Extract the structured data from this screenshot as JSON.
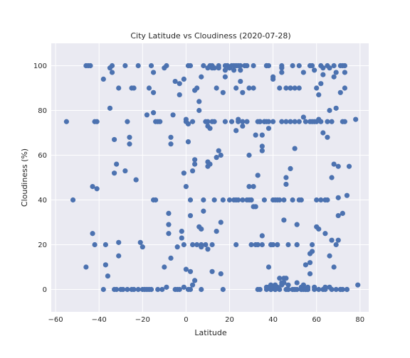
{
  "chart_data": {
    "type": "scatter",
    "title": "City Latitude vs Cloudiness (2020-07-28)",
    "xlabel": "Latitude",
    "ylabel": "Cloudiness (%)",
    "xlim": [
      -62,
      84
    ],
    "ylim": [
      -10,
      110
    ],
    "xticks": [
      "−60",
      "−40",
      "−20",
      "0",
      "20",
      "40",
      "60",
      "80"
    ],
    "yticks": [
      "0",
      "20",
      "40",
      "60",
      "80",
      "100"
    ],
    "grid": true,
    "point_color": "#4c72b0",
    "background_color": "#eaeaf2",
    "points": [
      [
        -55,
        75
      ],
      [
        -52,
        40
      ],
      [
        -46,
        10
      ],
      [
        -46,
        100
      ],
      [
        -45,
        100
      ],
      [
        -44,
        100
      ],
      [
        -43,
        25
      ],
      [
        -43,
        46
      ],
      [
        -42,
        75
      ],
      [
        -42,
        20
      ],
      [
        -41,
        45
      ],
      [
        -41,
        75
      ],
      [
        -38,
        0
      ],
      [
        -38,
        94
      ],
      [
        -37,
        20
      ],
      [
        -37,
        11
      ],
      [
        -36,
        6
      ],
      [
        -35,
        81
      ],
      [
        -35,
        99
      ],
      [
        -34,
        97
      ],
      [
        -34,
        100
      ],
      [
        -33,
        67
      ],
      [
        -33,
        0
      ],
      [
        -33,
        52
      ],
      [
        -32,
        56
      ],
      [
        -32,
        0
      ],
      [
        -31,
        15
      ],
      [
        -31,
        21
      ],
      [
        -31,
        90
      ],
      [
        -30,
        0
      ],
      [
        -29,
        0
      ],
      [
        -28,
        100
      ],
      [
        -28,
        53
      ],
      [
        -27,
        75
      ],
      [
        -27,
        0
      ],
      [
        -26,
        65
      ],
      [
        -26,
        68
      ],
      [
        -25,
        90
      ],
      [
        -25,
        0
      ],
      [
        -24,
        0
      ],
      [
        -24,
        90
      ],
      [
        -23,
        49
      ],
      [
        -22,
        0
      ],
      [
        -22,
        100
      ],
      [
        -21,
        21
      ],
      [
        -20,
        0
      ],
      [
        -20,
        19
      ],
      [
        -19,
        0
      ],
      [
        -18,
        0
      ],
      [
        -18,
        78
      ],
      [
        -17,
        90
      ],
      [
        -17,
        0
      ],
      [
        -16,
        0
      ],
      [
        -16,
        100
      ],
      [
        -15,
        88
      ],
      [
        -15,
        79
      ],
      [
        -15,
        97
      ],
      [
        -15,
        40
      ],
      [
        -14,
        40
      ],
      [
        -14,
        75
      ],
      [
        -13,
        75
      ],
      [
        -13,
        0
      ],
      [
        -12,
        75
      ],
      [
        -11,
        0
      ],
      [
        -10,
        10
      ],
      [
        -10,
        99
      ],
      [
        -9,
        100
      ],
      [
        -9,
        1
      ],
      [
        -8,
        29
      ],
      [
        -8,
        34
      ],
      [
        -8,
        25
      ],
      [
        -7,
        68
      ],
      [
        -7,
        65
      ],
      [
        -7,
        14
      ],
      [
        -6,
        78
      ],
      [
        -5,
        0
      ],
      [
        -5,
        93
      ],
      [
        -4,
        0
      ],
      [
        -4,
        19
      ],
      [
        -3,
        92
      ],
      [
        -3,
        87
      ],
      [
        -3,
        0
      ],
      [
        -2,
        23
      ],
      [
        -2,
        26
      ],
      [
        -1,
        20
      ],
      [
        -1,
        52
      ],
      [
        -1,
        1
      ],
      [
        -1,
        94
      ],
      [
        0,
        76
      ],
      [
        0,
        46
      ],
      [
        0,
        75
      ],
      [
        0,
        9
      ],
      [
        1,
        100
      ],
      [
        1,
        66
      ],
      [
        1,
        0
      ],
      [
        1,
        74
      ],
      [
        2,
        40
      ],
      [
        2,
        0
      ],
      [
        2,
        33
      ],
      [
        2,
        100
      ],
      [
        2,
        8
      ],
      [
        3,
        53
      ],
      [
        3,
        20
      ],
      [
        3,
        2
      ],
      [
        3,
        75
      ],
      [
        4,
        56
      ],
      [
        4,
        4
      ],
      [
        4,
        58
      ],
      [
        4,
        89
      ],
      [
        5,
        90
      ],
      [
        5,
        20
      ],
      [
        6,
        84
      ],
      [
        6,
        28
      ],
      [
        6,
        80
      ],
      [
        7,
        95
      ],
      [
        7,
        19
      ],
      [
        7,
        0
      ],
      [
        7,
        20
      ],
      [
        7,
        27
      ],
      [
        8,
        100
      ],
      [
        8,
        35
      ],
      [
        8,
        40
      ],
      [
        9,
        20
      ],
      [
        9,
        75
      ],
      [
        10,
        18
      ],
      [
        10,
        55
      ],
      [
        10,
        75
      ],
      [
        10,
        99
      ],
      [
        10,
        73
      ],
      [
        10,
        57
      ],
      [
        11,
        56
      ],
      [
        11,
        100
      ],
      [
        11,
        72
      ],
      [
        12,
        75
      ],
      [
        12,
        100
      ],
      [
        12,
        20
      ],
      [
        12,
        99
      ],
      [
        12,
        8
      ],
      [
        13,
        99
      ],
      [
        13,
        75
      ],
      [
        13,
        40
      ],
      [
        14,
        26
      ],
      [
        14,
        59
      ],
      [
        14,
        90
      ],
      [
        15,
        100
      ],
      [
        15,
        62
      ],
      [
        15,
        99
      ],
      [
        16,
        7
      ],
      [
        16,
        30
      ],
      [
        16,
        60
      ],
      [
        17,
        0
      ],
      [
        17,
        40
      ],
      [
        17,
        88
      ],
      [
        18,
        100
      ],
      [
        18,
        75
      ],
      [
        18,
        95
      ],
      [
        18,
        98
      ],
      [
        19,
        100
      ],
      [
        19,
        100
      ],
      [
        20,
        99
      ],
      [
        20,
        99
      ],
      [
        20,
        40
      ],
      [
        21,
        75
      ],
      [
        21,
        100
      ],
      [
        22,
        100
      ],
      [
        22,
        98
      ],
      [
        22,
        40
      ],
      [
        23,
        100
      ],
      [
        23,
        90
      ],
      [
        23,
        71
      ],
      [
        23,
        40
      ],
      [
        23,
        20
      ],
      [
        24,
        100
      ],
      [
        24,
        76
      ],
      [
        24,
        75
      ],
      [
        24,
        40
      ],
      [
        25,
        98
      ],
      [
        25,
        100
      ],
      [
        25,
        93
      ],
      [
        26,
        88
      ],
      [
        26,
        40
      ],
      [
        26,
        73
      ],
      [
        26,
        75
      ],
      [
        27,
        100
      ],
      [
        27,
        100
      ],
      [
        28,
        100
      ],
      [
        28,
        75
      ],
      [
        28,
        40
      ],
      [
        29,
        40
      ],
      [
        29,
        90
      ],
      [
        29,
        60
      ],
      [
        29,
        46
      ],
      [
        30,
        40
      ],
      [
        30,
        40
      ],
      [
        30,
        20
      ],
      [
        31,
        100
      ],
      [
        31,
        46
      ],
      [
        31,
        37
      ],
      [
        31,
        90
      ],
      [
        32,
        37
      ],
      [
        32,
        69
      ],
      [
        32,
        20
      ],
      [
        33,
        75
      ],
      [
        33,
        51
      ],
      [
        33,
        0
      ],
      [
        33,
        20
      ],
      [
        34,
        75
      ],
      [
        34,
        75
      ],
      [
        34,
        0
      ],
      [
        35,
        20
      ],
      [
        35,
        24
      ],
      [
        35,
        69
      ],
      [
        35,
        62
      ],
      [
        35,
        64
      ],
      [
        36,
        75
      ],
      [
        36,
        40
      ],
      [
        36,
        75
      ],
      [
        37,
        0
      ],
      [
        37,
        1
      ],
      [
        37,
        100
      ],
      [
        37,
        100
      ],
      [
        37,
        75
      ],
      [
        38,
        10
      ],
      [
        38,
        72
      ],
      [
        38,
        100
      ],
      [
        38,
        1
      ],
      [
        38,
        75
      ],
      [
        39,
        20
      ],
      [
        39,
        0
      ],
      [
        39,
        0
      ],
      [
        39,
        2
      ],
      [
        40,
        95
      ],
      [
        40,
        94
      ],
      [
        40,
        75
      ],
      [
        40,
        40
      ],
      [
        40,
        20
      ],
      [
        40,
        1
      ],
      [
        41,
        0
      ],
      [
        41,
        0
      ],
      [
        41,
        2
      ],
      [
        41,
        40
      ],
      [
        41,
        0
      ],
      [
        42,
        20
      ],
      [
        42,
        20
      ],
      [
        42,
        40
      ],
      [
        42,
        1
      ],
      [
        43,
        90
      ],
      [
        43,
        5
      ],
      [
        43,
        0
      ],
      [
        43,
        40
      ],
      [
        44,
        3
      ],
      [
        44,
        2
      ],
      [
        44,
        75
      ],
      [
        44,
        100
      ],
      [
        44,
        97
      ],
      [
        44,
        99
      ],
      [
        45,
        5
      ],
      [
        45,
        31
      ],
      [
        45,
        3
      ],
      [
        45,
        40
      ],
      [
        46,
        0
      ],
      [
        46,
        75
      ],
      [
        46,
        90
      ],
      [
        46,
        50
      ],
      [
        46,
        47
      ],
      [
        46,
        5
      ],
      [
        47,
        0
      ],
      [
        47,
        2
      ],
      [
        47,
        0
      ],
      [
        47,
        20
      ],
      [
        48,
        90
      ],
      [
        48,
        75
      ],
      [
        48,
        90
      ],
      [
        48,
        54
      ],
      [
        49,
        40
      ],
      [
        49,
        100
      ],
      [
        49,
        0
      ],
      [
        49,
        0
      ],
      [
        50,
        0
      ],
      [
        50,
        0
      ],
      [
        50,
        63
      ],
      [
        50,
        75
      ],
      [
        50,
        90
      ],
      [
        51,
        0
      ],
      [
        51,
        20
      ],
      [
        51,
        29
      ],
      [
        51,
        20
      ],
      [
        51,
        3
      ],
      [
        52,
        40
      ],
      [
        52,
        75
      ],
      [
        52,
        100
      ],
      [
        52,
        90
      ],
      [
        53,
        1
      ],
      [
        53,
        40
      ],
      [
        53,
        0
      ],
      [
        53,
        0
      ],
      [
        54,
        2
      ],
      [
        54,
        0
      ],
      [
        54,
        97
      ],
      [
        54,
        77
      ],
      [
        55,
        0
      ],
      [
        55,
        0
      ],
      [
        55,
        75
      ],
      [
        55,
        0
      ],
      [
        55,
        11
      ],
      [
        56,
        0
      ],
      [
        56,
        0
      ],
      [
        56,
        1
      ],
      [
        56,
        0
      ],
      [
        57,
        12
      ],
      [
        57,
        7
      ],
      [
        57,
        16
      ],
      [
        57,
        75
      ],
      [
        57,
        100
      ],
      [
        58,
        100
      ],
      [
        58,
        20
      ],
      [
        58,
        17
      ],
      [
        58,
        75
      ],
      [
        59,
        1
      ],
      [
        59,
        98
      ],
      [
        59,
        75
      ],
      [
        59,
        0
      ],
      [
        60,
        90
      ],
      [
        60,
        75
      ],
      [
        60,
        40
      ],
      [
        60,
        28
      ],
      [
        61,
        27
      ],
      [
        61,
        0
      ],
      [
        61,
        76
      ],
      [
        61,
        87
      ],
      [
        62,
        92
      ],
      [
        62,
        100
      ],
      [
        62,
        75
      ],
      [
        62,
        40
      ],
      [
        63,
        70
      ],
      [
        63,
        0
      ],
      [
        63,
        99
      ],
      [
        63,
        96
      ],
      [
        64,
        0
      ],
      [
        64,
        1
      ],
      [
        64,
        25
      ],
      [
        64,
        40
      ],
      [
        65,
        40
      ],
      [
        65,
        75
      ],
      [
        65,
        68
      ],
      [
        65,
        100
      ],
      [
        66,
        99
      ],
      [
        66,
        1
      ],
      [
        66,
        80
      ],
      [
        66,
        15
      ],
      [
        67,
        50
      ],
      [
        67,
        22
      ],
      [
        67,
        75
      ],
      [
        67,
        0
      ],
      [
        68,
        56
      ],
      [
        68,
        10
      ],
      [
        68,
        100
      ],
      [
        68,
        95
      ],
      [
        69,
        97
      ],
      [
        69,
        81
      ],
      [
        69,
        20
      ],
      [
        69,
        0
      ],
      [
        70,
        22
      ],
      [
        70,
        41
      ],
      [
        70,
        55
      ],
      [
        70,
        33
      ],
      [
        71,
        0
      ],
      [
        71,
        100
      ],
      [
        71,
        88
      ],
      [
        71,
        0
      ],
      [
        72,
        100
      ],
      [
        72,
        75
      ],
      [
        72,
        34
      ],
      [
        72,
        0
      ],
      [
        73,
        100
      ],
      [
        73,
        97
      ],
      [
        73,
        75
      ],
      [
        73,
        90
      ],
      [
        74,
        0
      ],
      [
        74,
        42
      ],
      [
        74,
        0
      ],
      [
        75,
        55
      ],
      [
        78,
        76
      ],
      [
        79,
        2
      ]
    ]
  }
}
